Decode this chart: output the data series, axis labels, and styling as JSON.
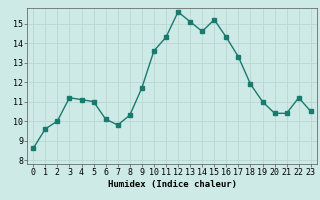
{
  "x": [
    0,
    1,
    2,
    3,
    4,
    5,
    6,
    7,
    8,
    9,
    10,
    11,
    12,
    13,
    14,
    15,
    16,
    17,
    18,
    19,
    20,
    21,
    22,
    23
  ],
  "y": [
    8.6,
    9.6,
    10.0,
    11.2,
    11.1,
    11.0,
    10.1,
    9.8,
    10.3,
    11.7,
    13.6,
    14.3,
    15.6,
    15.1,
    14.6,
    15.2,
    14.3,
    13.3,
    11.9,
    11.0,
    10.4,
    10.4,
    11.2,
    10.5
  ],
  "line_color": "#1a7a6e",
  "marker": "s",
  "marker_size": 2.2,
  "bg_color": "#ceeae7",
  "grid_color": "#b8d8d4",
  "xlabel": "Humidex (Indice chaleur)",
  "xlim": [
    -0.5,
    23.5
  ],
  "ylim": [
    7.8,
    15.8
  ],
  "yticks": [
    8,
    9,
    10,
    11,
    12,
    13,
    14,
    15
  ],
  "xticks": [
    0,
    1,
    2,
    3,
    4,
    5,
    6,
    7,
    8,
    9,
    10,
    11,
    12,
    13,
    14,
    15,
    16,
    17,
    18,
    19,
    20,
    21,
    22,
    23
  ],
  "xlabel_fontsize": 6.5,
  "tick_fontsize": 6,
  "linewidth": 1.0
}
